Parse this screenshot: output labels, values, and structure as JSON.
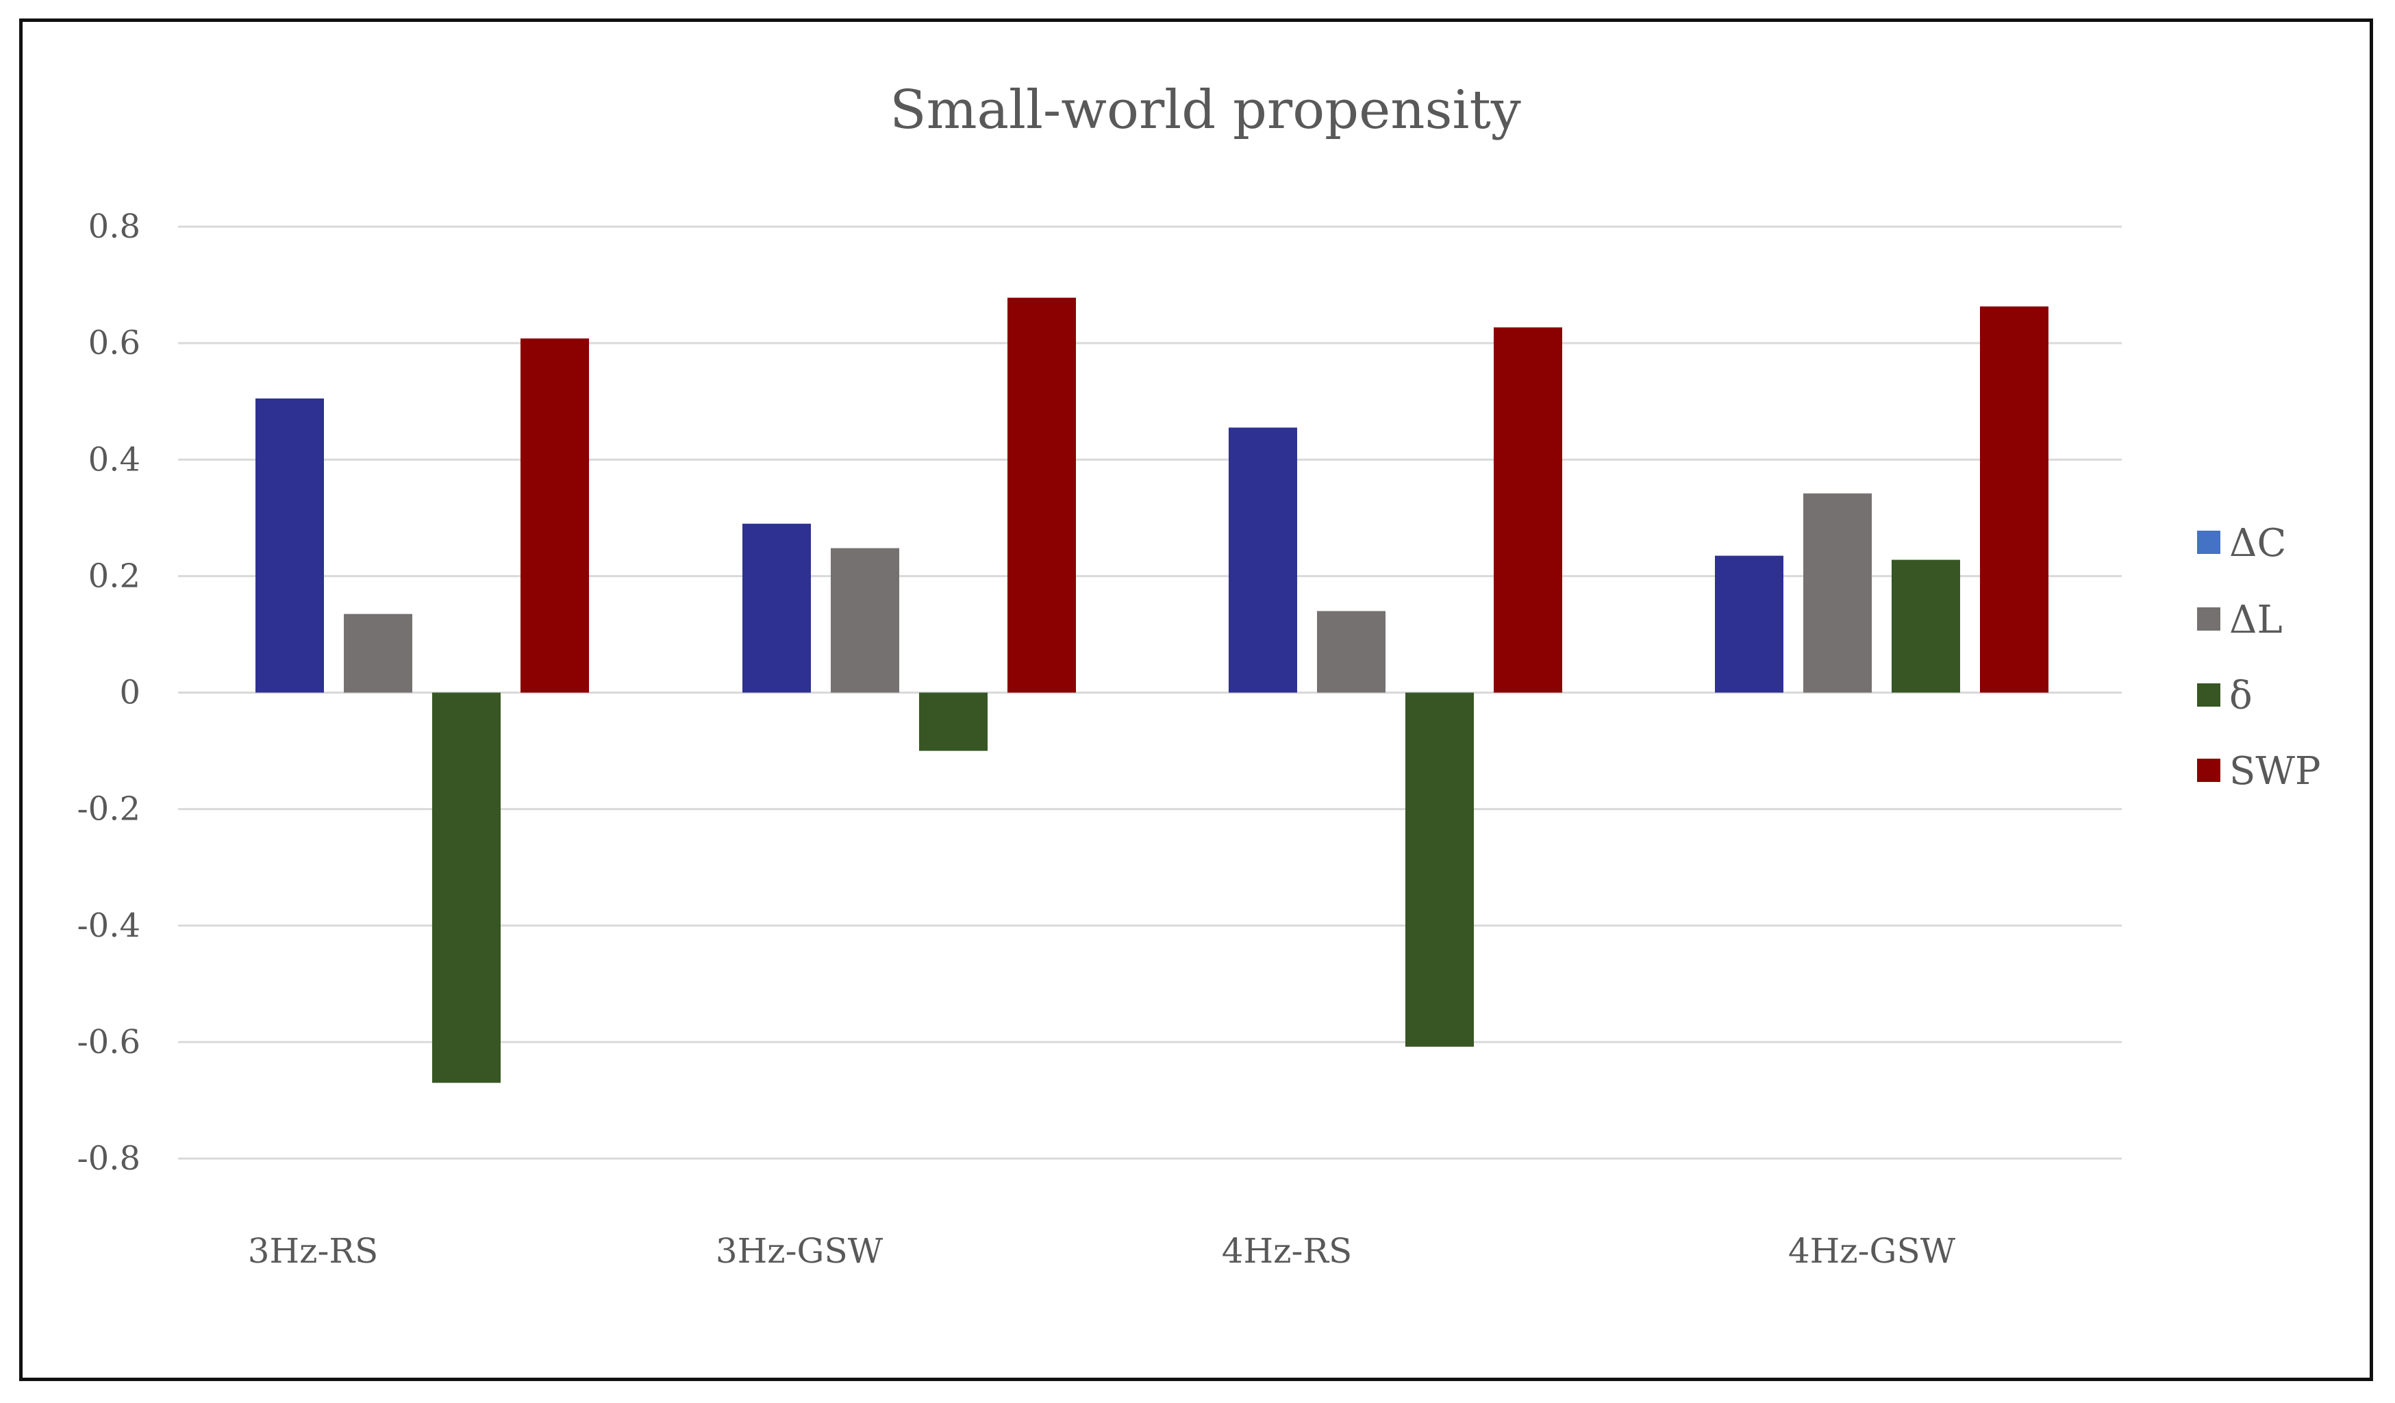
{
  "chart_data": {
    "type": "bar",
    "title": "Small-world  propensity",
    "xlabel": "",
    "ylabel": "",
    "categories": [
      "3Hz-RS",
      "3Hz-GSW",
      "4Hz-RS",
      "4Hz-GSW"
    ],
    "series": [
      {
        "name": "ΔC",
        "color": "#2e3192",
        "legend_color": "#4472c4",
        "values": [
          0.505,
          0.29,
          0.455,
          0.235
        ]
      },
      {
        "name": "ΔL",
        "color": "#767171",
        "legend_color": "#767171",
        "values": [
          0.135,
          0.248,
          0.14,
          0.342
        ]
      },
      {
        "name": "δ",
        "color": "#375623",
        "legend_color": "#375623",
        "values": [
          -0.67,
          -0.1,
          -0.608,
          0.228
        ]
      },
      {
        "name": "SWP",
        "color": "#8b0000",
        "legend_color": "#8b0000",
        "values": [
          0.608,
          0.678,
          0.627,
          0.663
        ]
      }
    ],
    "ylim": [
      -0.8,
      0.8
    ],
    "yticks": [
      0.8,
      0.6,
      0.4,
      0.2,
      0,
      -0.2,
      -0.4,
      -0.6,
      -0.8
    ],
    "ytick_labels": [
      "0.8",
      "0.6",
      "0.4",
      "0.2",
      "0",
      "-0.2",
      "-0.4",
      "-0.6",
      "-0.8"
    ],
    "grid": true,
    "gridline_color": "#d9d9d9",
    "legend_position": "right"
  }
}
